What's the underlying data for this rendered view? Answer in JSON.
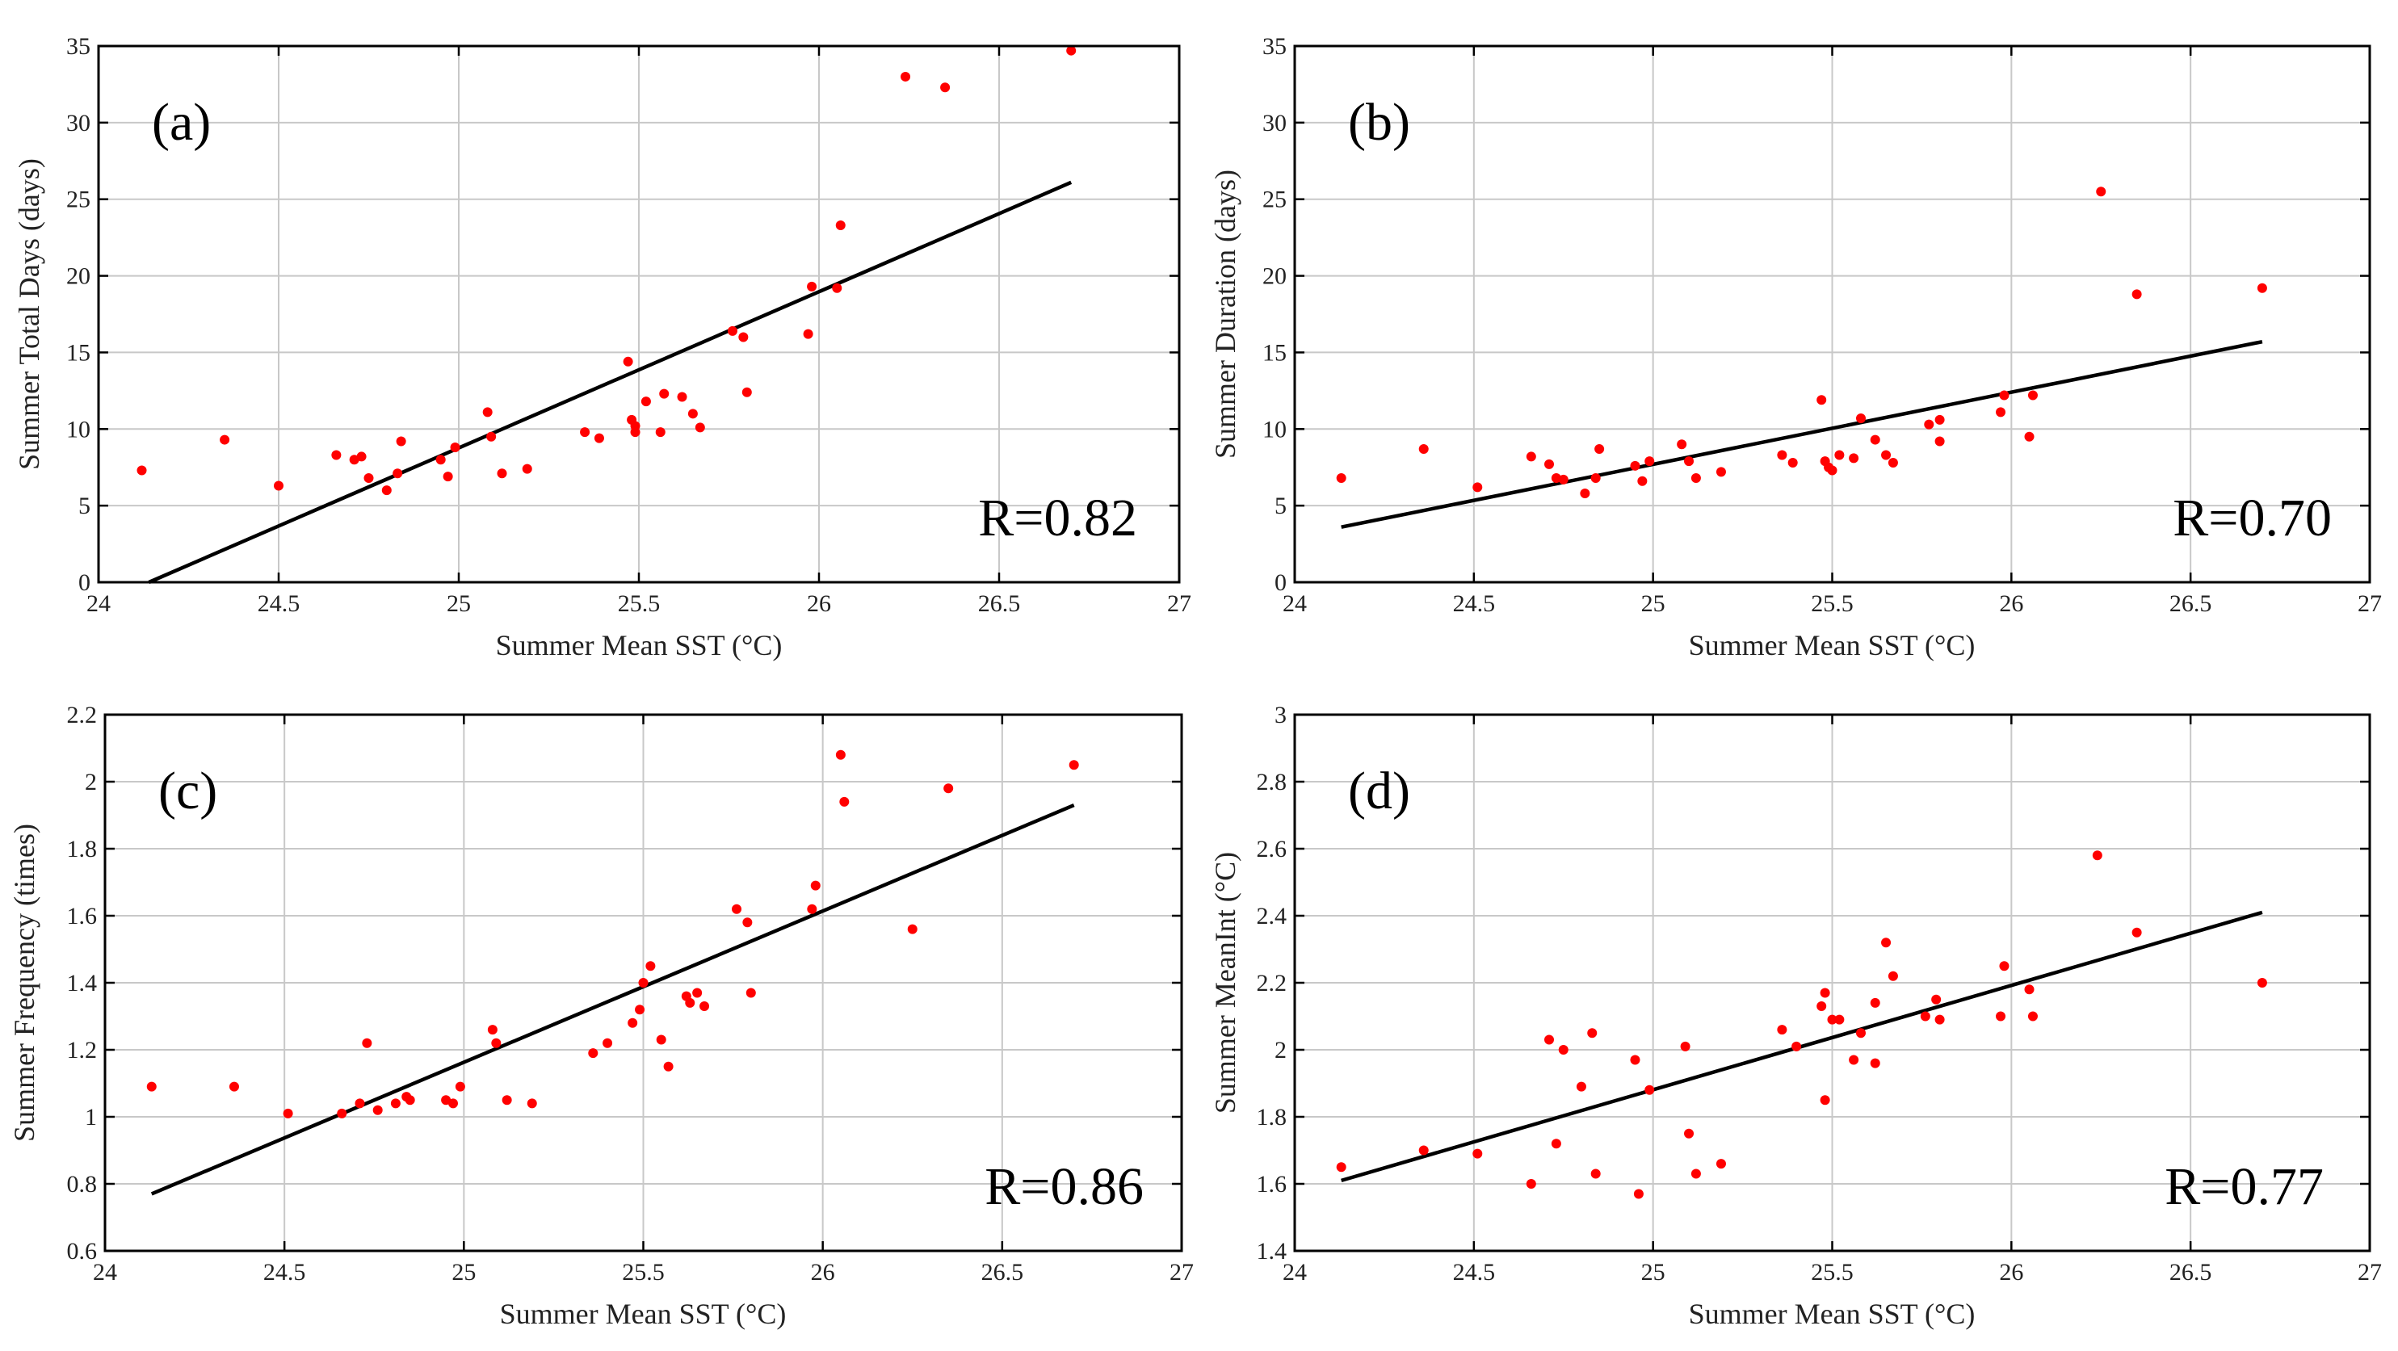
{
  "chart_data": [
    {
      "type": "scatter",
      "panel_label": "(a)",
      "xlabel": "Summer Mean SST (°C)",
      "ylabel": "Summer Total Days (days)",
      "xlim": [
        24,
        27
      ],
      "ylim": [
        0,
        35
      ],
      "xticks": [
        24,
        24.5,
        25,
        25.5,
        26,
        26.5,
        27
      ],
      "xtick_labels": [
        "24",
        "24.5",
        "25",
        "25.5",
        "26",
        "26.5",
        "27"
      ],
      "yticks": [
        0,
        5,
        10,
        15,
        20,
        25,
        30,
        35
      ],
      "ytick_labels": [
        "0",
        "5",
        "10",
        "15",
        "20",
        "25",
        "30",
        "35"
      ],
      "grid": true,
      "annotation": "R=0.82",
      "fit_line": [
        [
          24.14,
          0.0
        ],
        [
          26.7,
          26.1
        ]
      ],
      "points": [
        [
          24.12,
          7.3
        ],
        [
          24.35,
          9.3
        ],
        [
          24.5,
          6.3
        ],
        [
          24.66,
          8.3
        ],
        [
          24.71,
          8.0
        ],
        [
          24.73,
          8.2
        ],
        [
          24.75,
          6.8
        ],
        [
          24.8,
          6.0
        ],
        [
          24.83,
          7.1
        ],
        [
          24.84,
          9.2
        ],
        [
          24.95,
          8.0
        ],
        [
          24.97,
          6.9
        ],
        [
          24.99,
          8.8
        ],
        [
          25.08,
          11.1
        ],
        [
          25.09,
          9.5
        ],
        [
          25.12,
          7.1
        ],
        [
          25.19,
          7.4
        ],
        [
          25.35,
          9.8
        ],
        [
          25.39,
          9.4
        ],
        [
          25.47,
          14.4
        ],
        [
          25.48,
          10.6
        ],
        [
          25.49,
          10.2
        ],
        [
          25.49,
          9.8
        ],
        [
          25.52,
          11.8
        ],
        [
          25.56,
          9.8
        ],
        [
          25.57,
          12.3
        ],
        [
          25.62,
          12.1
        ],
        [
          25.65,
          11.0
        ],
        [
          25.67,
          10.1
        ],
        [
          25.76,
          16.4
        ],
        [
          25.79,
          16.0
        ],
        [
          25.8,
          12.4
        ],
        [
          25.97,
          16.2
        ],
        [
          25.98,
          19.3
        ],
        [
          26.05,
          19.2
        ],
        [
          26.06,
          23.3
        ],
        [
          26.24,
          33.0
        ],
        [
          26.35,
          32.3
        ],
        [
          26.7,
          34.7
        ]
      ]
    },
    {
      "type": "scatter",
      "panel_label": "(b)",
      "xlabel": "Summer Mean SST (°C)",
      "ylabel": "Summer Duration (days)",
      "xlim": [
        24,
        27
      ],
      "ylim": [
        0,
        35
      ],
      "xticks": [
        24,
        24.5,
        25,
        25.5,
        26,
        26.5,
        27
      ],
      "xtick_labels": [
        "24",
        "24.5",
        "25",
        "25.5",
        "26",
        "26.5",
        "27"
      ],
      "yticks": [
        0,
        5,
        10,
        15,
        20,
        25,
        30,
        35
      ],
      "ytick_labels": [
        "0",
        "5",
        "10",
        "15",
        "20",
        "25",
        "30",
        "35"
      ],
      "grid": true,
      "annotation": "R=0.70",
      "fit_line": [
        [
          24.13,
          3.6
        ],
        [
          26.7,
          15.7
        ]
      ],
      "points": [
        [
          24.13,
          6.8
        ],
        [
          24.36,
          8.7
        ],
        [
          24.51,
          6.2
        ],
        [
          24.66,
          8.2
        ],
        [
          24.71,
          7.7
        ],
        [
          24.73,
          6.8
        ],
        [
          24.75,
          6.7
        ],
        [
          24.81,
          5.8
        ],
        [
          24.84,
          6.8
        ],
        [
          24.85,
          8.7
        ],
        [
          24.95,
          7.6
        ],
        [
          24.97,
          6.6
        ],
        [
          24.99,
          7.9
        ],
        [
          25.08,
          9.0
        ],
        [
          25.1,
          7.9
        ],
        [
          25.12,
          6.8
        ],
        [
          25.19,
          7.2
        ],
        [
          25.36,
          8.3
        ],
        [
          25.39,
          7.8
        ],
        [
          25.47,
          11.9
        ],
        [
          25.48,
          7.9
        ],
        [
          25.49,
          7.5
        ],
        [
          25.5,
          7.3
        ],
        [
          25.52,
          8.3
        ],
        [
          25.56,
          8.1
        ],
        [
          25.58,
          10.7
        ],
        [
          25.62,
          9.3
        ],
        [
          25.65,
          8.3
        ],
        [
          25.67,
          7.8
        ],
        [
          25.77,
          10.3
        ],
        [
          25.8,
          10.6
        ],
        [
          25.8,
          9.2
        ],
        [
          25.97,
          11.1
        ],
        [
          25.98,
          12.2
        ],
        [
          26.05,
          9.5
        ],
        [
          26.06,
          12.2
        ],
        [
          26.25,
          25.5
        ],
        [
          26.35,
          18.8
        ],
        [
          26.7,
          19.2
        ]
      ]
    },
    {
      "type": "scatter",
      "panel_label": "(c)",
      "xlabel": "Summer Mean SST (°C)",
      "ylabel": "Summer Frequency (times)",
      "xlim": [
        24,
        27
      ],
      "ylim": [
        0.6,
        2.2
      ],
      "xticks": [
        24,
        24.5,
        25,
        25.5,
        26,
        26.5,
        27
      ],
      "xtick_labels": [
        "24",
        "24.5",
        "25",
        "25.5",
        "26",
        "26.5",
        "27"
      ],
      "yticks": [
        0.6,
        0.8,
        1,
        1.2,
        1.4,
        1.6,
        1.8,
        2,
        2.2
      ],
      "ytick_labels": [
        "0.6",
        "0.8",
        "1",
        "1.2",
        "1.4",
        "1.6",
        "1.8",
        "2",
        "2.2"
      ],
      "grid": true,
      "annotation": "R=0.86",
      "fit_line": [
        [
          24.13,
          0.77
        ],
        [
          26.7,
          1.93
        ]
      ],
      "points": [
        [
          24.13,
          1.09
        ],
        [
          24.36,
          1.09
        ],
        [
          24.51,
          1.01
        ],
        [
          24.66,
          1.01
        ],
        [
          24.71,
          1.04
        ],
        [
          24.73,
          1.22
        ],
        [
          24.76,
          1.02
        ],
        [
          24.81,
          1.04
        ],
        [
          24.84,
          1.06
        ],
        [
          24.85,
          1.05
        ],
        [
          24.95,
          1.05
        ],
        [
          24.97,
          1.04
        ],
        [
          24.99,
          1.09
        ],
        [
          25.08,
          1.26
        ],
        [
          25.09,
          1.22
        ],
        [
          25.12,
          1.05
        ],
        [
          25.19,
          1.04
        ],
        [
          25.36,
          1.19
        ],
        [
          25.4,
          1.22
        ],
        [
          25.47,
          1.28
        ],
        [
          25.49,
          1.32
        ],
        [
          25.5,
          1.4
        ],
        [
          25.52,
          1.45
        ],
        [
          25.55,
          1.23
        ],
        [
          25.57,
          1.15
        ],
        [
          25.62,
          1.36
        ],
        [
          25.63,
          1.34
        ],
        [
          25.65,
          1.37
        ],
        [
          25.67,
          1.33
        ],
        [
          25.76,
          1.62
        ],
        [
          25.79,
          1.58
        ],
        [
          25.8,
          1.37
        ],
        [
          25.97,
          1.62
        ],
        [
          25.98,
          1.69
        ],
        [
          26.05,
          2.08
        ],
        [
          26.06,
          1.94
        ],
        [
          26.25,
          1.56
        ],
        [
          26.35,
          1.98
        ],
        [
          26.7,
          2.05
        ]
      ]
    },
    {
      "type": "scatter",
      "panel_label": "(d)",
      "xlabel": "Summer Mean SST (°C)",
      "ylabel": "Summer MeanInt (°C)",
      "xlim": [
        24,
        27
      ],
      "ylim": [
        1.4,
        3
      ],
      "xticks": [
        24,
        24.5,
        25,
        25.5,
        26,
        26.5,
        27
      ],
      "xtick_labels": [
        "24",
        "24.5",
        "25",
        "25.5",
        "26",
        "26.5",
        "27"
      ],
      "yticks": [
        1.4,
        1.6,
        1.8,
        2,
        2.2,
        2.4,
        2.6,
        2.8,
        3
      ],
      "ytick_labels": [
        "1.4",
        "1.6",
        "1.8",
        "2",
        "2.2",
        "2.4",
        "2.6",
        "2.8",
        "3"
      ],
      "grid": true,
      "annotation": "R=0.77",
      "fit_line": [
        [
          24.13,
          1.61
        ],
        [
          26.7,
          2.41
        ]
      ],
      "points": [
        [
          24.13,
          1.65
        ],
        [
          24.36,
          1.7
        ],
        [
          24.51,
          1.69
        ],
        [
          24.66,
          1.6
        ],
        [
          24.71,
          2.03
        ],
        [
          24.73,
          1.72
        ],
        [
          24.75,
          2.0
        ],
        [
          24.8,
          1.89
        ],
        [
          24.83,
          2.05
        ],
        [
          24.84,
          1.63
        ],
        [
          24.95,
          1.97
        ],
        [
          24.96,
          1.57
        ],
        [
          24.99,
          1.88
        ],
        [
          25.09,
          2.01
        ],
        [
          25.1,
          1.75
        ],
        [
          25.12,
          1.63
        ],
        [
          25.19,
          1.66
        ],
        [
          25.36,
          2.06
        ],
        [
          25.4,
          2.01
        ],
        [
          25.47,
          2.13
        ],
        [
          25.48,
          1.85
        ],
        [
          25.48,
          2.17
        ],
        [
          25.5,
          2.09
        ],
        [
          25.52,
          2.09
        ],
        [
          25.56,
          1.97
        ],
        [
          25.58,
          2.05
        ],
        [
          25.62,
          2.14
        ],
        [
          25.62,
          1.96
        ],
        [
          25.65,
          2.32
        ],
        [
          25.67,
          2.22
        ],
        [
          25.76,
          2.1
        ],
        [
          25.79,
          2.15
        ],
        [
          25.8,
          2.09
        ],
        [
          25.97,
          2.1
        ],
        [
          25.98,
          2.25
        ],
        [
          26.05,
          2.18
        ],
        [
          26.06,
          2.1
        ],
        [
          26.24,
          2.58
        ],
        [
          26.35,
          2.35
        ],
        [
          26.7,
          2.2
        ]
      ]
    }
  ]
}
